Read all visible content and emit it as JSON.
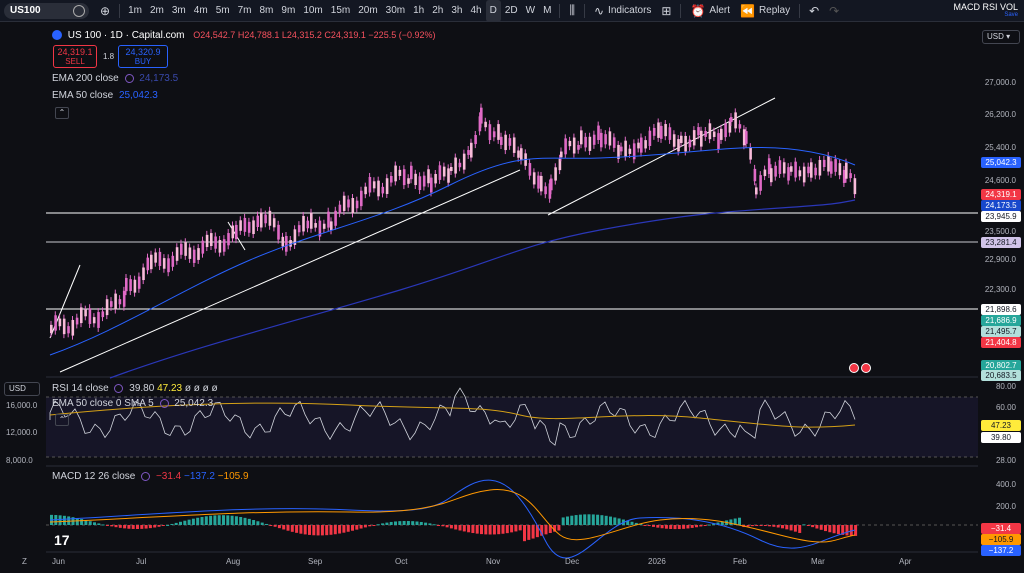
{
  "toolbar": {
    "symbol": "US100",
    "timeframes": [
      "1m",
      "2m",
      "3m",
      "4m",
      "5m",
      "7m",
      "8m",
      "9m",
      "10m",
      "15m",
      "20m",
      "30m",
      "1h",
      "2h",
      "3h",
      "4h",
      "D",
      "2D",
      "W",
      "M"
    ],
    "active_timeframe": "D",
    "indicators_label": "Indicators",
    "alert_label": "Alert",
    "replay_label": "Replay",
    "layout_name": "MACD RSI VOL",
    "save_label": "Save"
  },
  "legend": {
    "symbol_title": "US 100 · 1D · Capital.com",
    "ohlc": "O24,542.7 H24,788.1 L24,315.2 C24,319.1 −225.5 (−0.92%)",
    "sell_price": "24,319.1",
    "sell_label": "SELL",
    "spread": "1.8",
    "buy_price": "24,320.9",
    "buy_label": "BUY",
    "ema200_label": "EMA 200 close",
    "ema200_value": "24,173.5",
    "ema50_label": "EMA 50 close",
    "ema50_value": "25,042.3"
  },
  "rsi_legend": {
    "label": "RSI 14 close",
    "value1": "39.80",
    "value2": "47.23",
    "trailing": "ø ø ø ø",
    "ema_label": "EMA 50 close 0 SMA 5",
    "ema_value": "25,042.3"
  },
  "macd_legend": {
    "label": "MACD 12 26 close",
    "v1": "−31.4",
    "v2": "−137.2",
    "v3": "−105.9"
  },
  "currency": "USD",
  "price_axis": {
    "ticks": [
      "27,000.0",
      "26,200.0",
      "25,400.0",
      "24,600.0",
      "23,500.0",
      "22,900.0",
      "22,300.0",
      "21,700.0"
    ],
    "labels": [
      {
        "text": "25,042.3",
        "color": "#2962ff",
        "fg": "#ffffff"
      },
      {
        "text": "24,319.1",
        "color": "#f23645",
        "fg": "#ffffff"
      },
      {
        "text": "24,173.5",
        "color": "#1848cc",
        "fg": "#ffffff"
      },
      {
        "text": "23,945.9",
        "color": "#ffffff",
        "fg": "#131722"
      },
      {
        "text": "23,281.4",
        "color": "#d1c4e9",
        "fg": "#131722"
      },
      {
        "text": "21,898.6",
        "color": "#ffffff",
        "fg": "#131722"
      },
      {
        "text": "21,686.9",
        "color": "#26a69a",
        "fg": "#ffffff"
      },
      {
        "text": "21,495.7",
        "color": "#b2dfdb",
        "fg": "#131722"
      },
      {
        "text": "21,404.8",
        "color": "#f23645",
        "fg": "#ffffff"
      },
      {
        "text": "20,802.7",
        "color": "#26a69a",
        "fg": "#ffffff"
      },
      {
        "text": "20,683.5",
        "color": "#b2dfdb",
        "fg": "#131722"
      }
    ]
  },
  "rsi_axis": {
    "ticks": [
      "80.00",
      "60.00",
      "28.00"
    ],
    "labels": [
      {
        "text": "47.23",
        "color": "#ffeb3b",
        "fg": "#131722"
      },
      {
        "text": "39.80",
        "color": "#ffffff",
        "fg": "#131722"
      }
    ],
    "left_ticks": [
      "16,000.0",
      "12,000.0",
      "8,000.0"
    ]
  },
  "macd_axis": {
    "ticks": [
      "400.0",
      "200.0"
    ],
    "labels": [
      {
        "text": "−31.4",
        "color": "#f23645",
        "fg": "#ffffff"
      },
      {
        "text": "−105.9",
        "color": "#ff9800",
        "fg": "#131722"
      },
      {
        "text": "−137.2",
        "color": "#2962ff",
        "fg": "#ffffff"
      }
    ]
  },
  "time_axis": [
    "Jun",
    "Jul",
    "Aug",
    "Sep",
    "Oct",
    "Nov",
    "Dec",
    "2026",
    "Feb",
    "Mar",
    "Apr"
  ],
  "colors": {
    "candle": "#e06ac6",
    "ema200": "#2a37b8",
    "ema50": "#2962ff",
    "rsi": "#d1d4dc",
    "rsi_ma": "#d4a017",
    "macd": "#2962ff",
    "signal": "#ff9800",
    "hist_pos": "#26a69a",
    "hist_neg": "#f23645"
  }
}
